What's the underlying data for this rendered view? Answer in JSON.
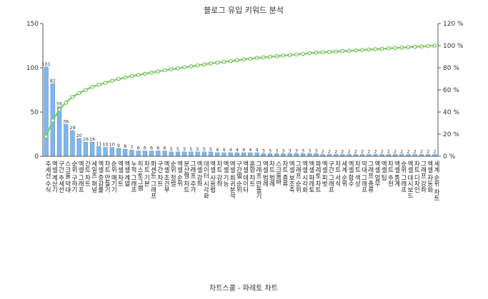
{
  "chart_data": {
    "type": "bar",
    "title": "블로그 유입 키워드 분석",
    "xlabel": "차트스쿨 - 파레토 차트",
    "ylabel": "",
    "ylim": [
      0,
      150
    ],
    "y2lim": [
      0,
      120
    ],
    "y_ticks": [
      "0",
      "50",
      "100",
      "150"
    ],
    "y2_ticks": [
      "0 %",
      "20 %",
      "40 %",
      "60 %",
      "80 %",
      "100 %",
      "120 %"
    ],
    "grid": false,
    "legend": "none",
    "bar_color": "#7fb6ec",
    "bar_edge": "#4a86c5",
    "line_color": "#7ccf5e",
    "categories": [
      "추세선 수식",
      "엑셀 계산기",
      "구간 추세선",
      "스크롤 막대",
      "순위 구하기",
      "엑셀 그래프",
      "간트 차트",
      "세일즈 퍼널",
      "엑셀 증감률",
      "차트 만들기",
      "순위 매기기",
      "엑셀 차트",
      "엑셀 계열",
      "누적 그래프",
      "히스토그램",
      "차트 기본",
      "퍼센트 그래프",
      "구간 차트",
      "엑셀 조건부",
      "순위 정렬",
      "엑셀 순위",
      "분산형 차트",
      "그래프 추가",
      "엑셀 강좌",
      "데이터 시각화",
      "엑셀 사용법",
      "차트 강좌",
      "엑셀 기능",
      "엑셀 회귀분석",
      "구간별 순위",
      "엑셀 데이터",
      "혼합 차트",
      "그래프 만들기",
      "엑셀 범례",
      "차트 범례",
      "스크롤바",
      "차트 종류",
      "엑셀 보조축",
      "그래프 순위",
      "엑셀 시각화",
      "엑셀 파레토",
      "파레토 차트",
      "엑셀 피벗",
      "구간 그래프",
      "차트 서식",
      "세계 순위",
      "엑셀 함수",
      "차트 색상",
      "막대 그래프",
      "그래프 종류",
      "엑셀 업무",
      "엑셀 팁",
      "차트 추천",
      "엑셀 통계",
      "순위 그래프",
      "엑셀 대시보드",
      "차트 디자인",
      "그래프 강좌",
      "엑셀 자동화",
      "세계 순위 차트"
    ],
    "values": [
      101,
      82,
      56,
      36,
      29,
      20,
      16,
      16,
      11,
      10,
      10,
      9,
      8,
      7,
      6,
      6,
      6,
      6,
      6,
      5,
      5,
      5,
      5,
      5,
      5,
      5,
      4,
      4,
      4,
      4,
      4,
      4,
      4,
      3,
      3,
      3,
      3,
      3,
      3,
      3,
      3,
      3,
      2,
      2,
      2,
      2,
      2,
      2,
      2,
      2,
      2,
      2,
      2,
      2,
      2,
      2,
      2,
      2,
      2,
      2
    ],
    "series": [
      {
        "name": "",
        "type": "bar",
        "axis": "left"
      },
      {
        "name": "",
        "type": "line",
        "axis": "right",
        "values": "cumulative percent of bar values"
      }
    ]
  }
}
